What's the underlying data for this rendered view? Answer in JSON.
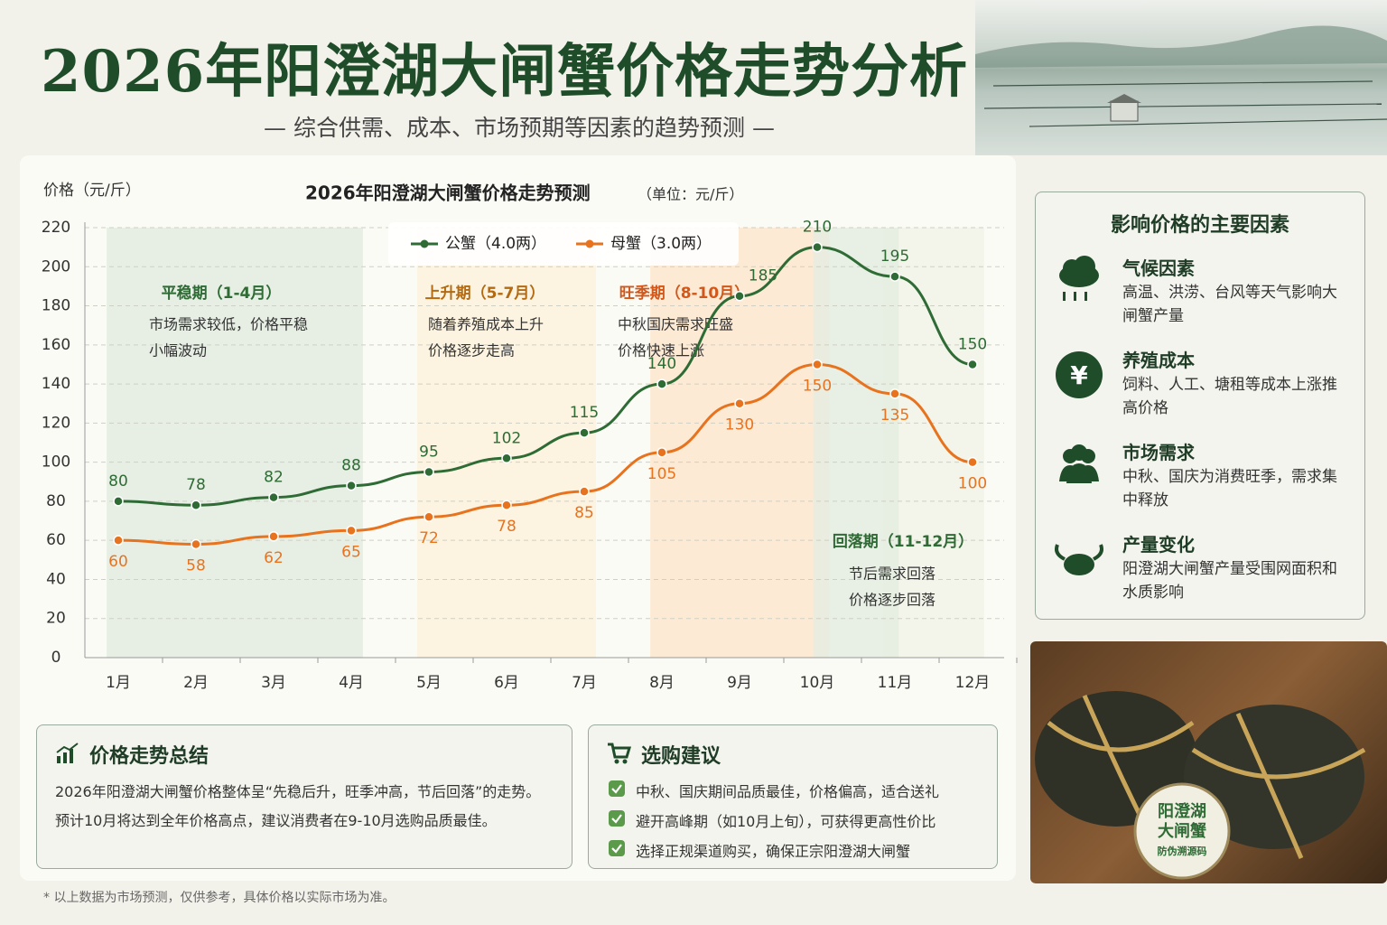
{
  "header": {
    "title": "2026年阳澄湖大闸蟹价格走势分析",
    "subtitle": "— 综合供需、成本、市场预期等因素的趋势预测 —"
  },
  "chart_data": {
    "type": "line",
    "title": "2026年阳澄湖大闸蟹价格走势预测",
    "unit": "（单位：元/斤）",
    "y_label": "价格（元/斤）",
    "categories": [
      "1月",
      "2月",
      "3月",
      "4月",
      "5月",
      "6月",
      "7月",
      "8月",
      "9月",
      "10月",
      "11月",
      "12月"
    ],
    "series": [
      {
        "name": "公蟹（4.0两）",
        "color": "#2e6b35",
        "values": [
          80,
          78,
          82,
          88,
          95,
          102,
          115,
          140,
          185,
          210,
          195,
          150
        ]
      },
      {
        "name": "母蟹（3.0两）",
        "color": "#e8731f",
        "values": [
          60,
          58,
          62,
          65,
          72,
          78,
          85,
          105,
          130,
          150,
          135,
          100
        ]
      }
    ],
    "ylim": [
      0,
      220
    ],
    "yticks": [
      0,
      20,
      40,
      60,
      80,
      100,
      120,
      140,
      160,
      180,
      200,
      220
    ],
    "grid": true,
    "legend": "top",
    "periods": [
      {
        "title": "平稳期（1-4月）",
        "lines": [
          "市场需求较低，价格平稳",
          "小幅波动"
        ]
      },
      {
        "title": "上升期（5-7月）",
        "lines": [
          "随着养殖成本上升",
          "价格逐步走高"
        ]
      },
      {
        "title": "旺季期（8-10月）",
        "lines": [
          "中秋国庆需求旺盛",
          "价格快速上涨"
        ]
      },
      {
        "title": "回落期（11-12月）",
        "lines": [
          "节后需求回落",
          "价格逐步回落"
        ]
      }
    ]
  },
  "factors": {
    "title": "影响价格的主要因素",
    "items": [
      {
        "title": "气候因素",
        "text": "高温、洪涝、台风等天气影响大闸蟹产量"
      },
      {
        "title": "养殖成本",
        "text": "饲料、人工、塘租等成本上涨推高价格"
      },
      {
        "title": "市场需求",
        "text": "中秋、国庆为消费旺季，需求集中释放"
      },
      {
        "title": "产量变化",
        "text": "阳澄湖大闸蟹产量受围网面积和水质影响"
      }
    ]
  },
  "summary": {
    "title": "价格走势总结",
    "lines": [
      "2026年阳澄湖大闸蟹价格整体呈“先稳后升，旺季冲高，节后回落”的走势。",
      "预计10月将达到全年价格高点，建议消费者在9-10月选购品质最佳。"
    ]
  },
  "advice": {
    "title": "选购建议",
    "items": [
      "中秋、国庆期间品质最佳，价格偏高，适合送礼",
      "避开高峰期（如10月上旬），可获得更高性价比",
      "选择正规渠道购买，确保正宗阳澄湖大闸蟹"
    ]
  },
  "photo_tag": [
    "阳澄湖",
    "大闸蟹",
    "防伪溯源码"
  ],
  "footnote": "* 以上数据为市场预测，仅供参考，具体价格以实际市场为准。"
}
